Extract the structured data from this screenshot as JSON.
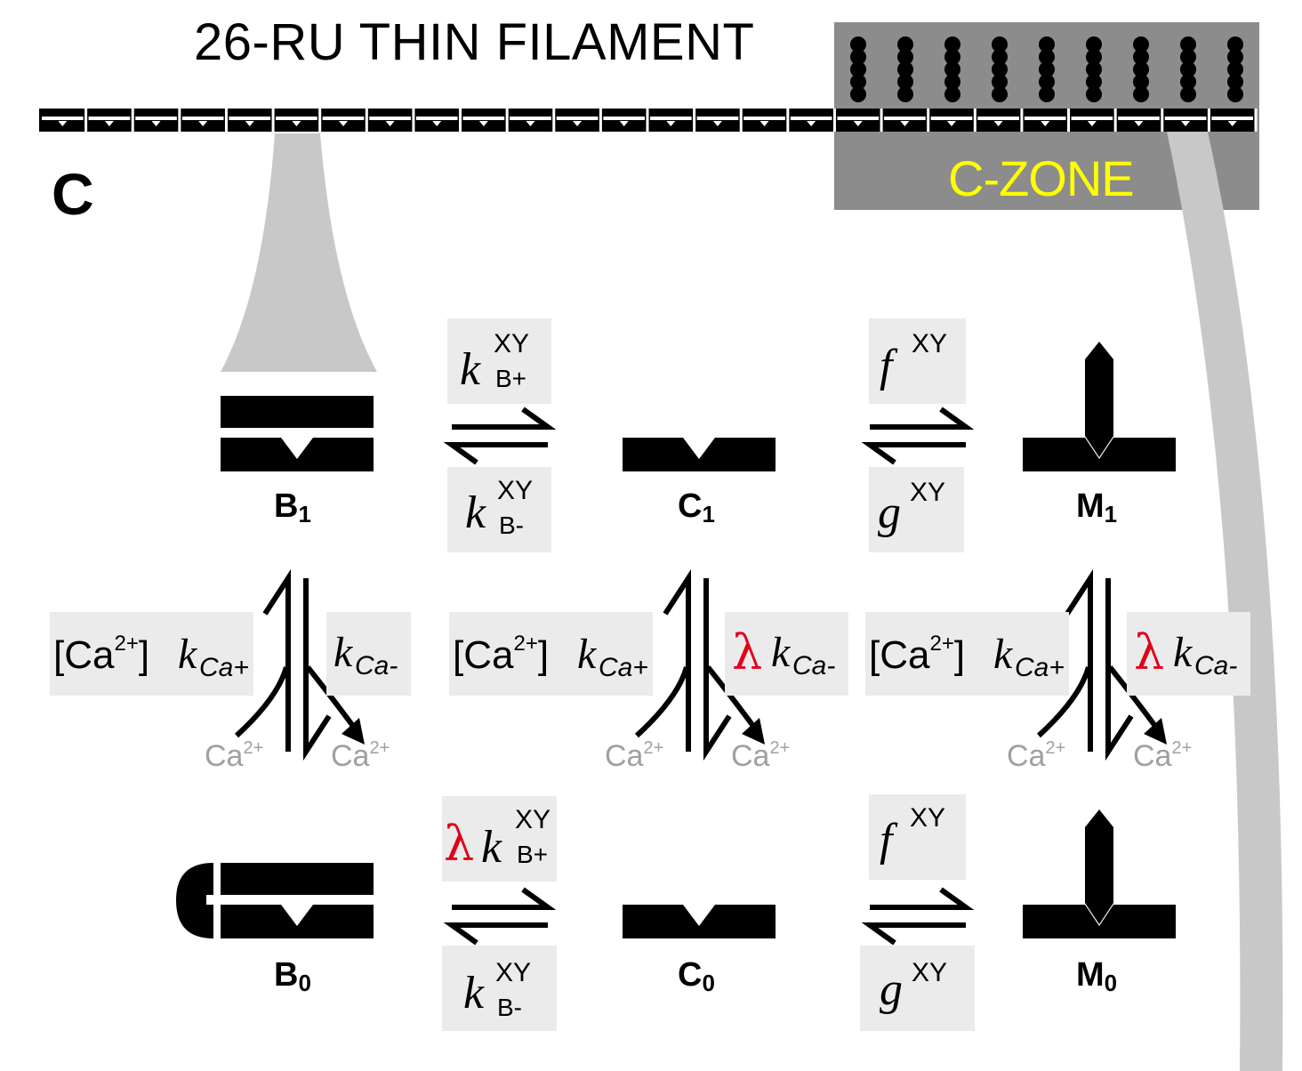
{
  "title": "26-RU THIN FILAMENT",
  "panel_label": "C",
  "czone_label": "C-ZONE",
  "states": {
    "B1": {
      "main": "B",
      "sub": "1"
    },
    "C1": {
      "main": "C",
      "sub": "1"
    },
    "M1": {
      "main": "M",
      "sub": "1"
    },
    "B0": {
      "main": "B",
      "sub": "0"
    },
    "C0": {
      "main": "C",
      "sub": "0"
    },
    "M0": {
      "main": "M",
      "sub": "0"
    }
  },
  "rates": {
    "k": "k",
    "f": "f",
    "g": "g",
    "xy": "XY",
    "b_plus": "B+",
    "b_minus": "B-",
    "lambda": "λ",
    "ca_conc": "[Ca",
    "ca_charge": "2+",
    "ca_close": "]",
    "ca_plus": "Ca+",
    "ca_minus": "Ca-"
  },
  "ion": {
    "symbol": "Ca",
    "charge": "2+"
  },
  "colors": {
    "accent_red": "#e0001b",
    "czone_text": "#ffff00",
    "czone_bg": "#8c8c8c",
    "highlight_bg": "#ebebeb"
  }
}
